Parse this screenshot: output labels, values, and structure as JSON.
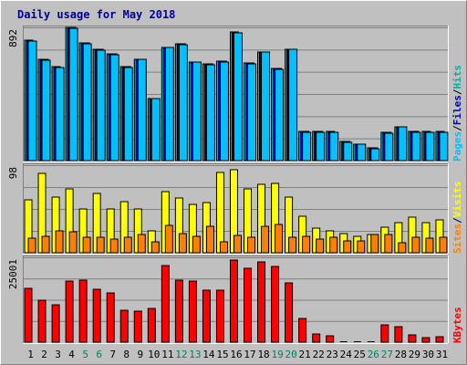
{
  "chart_data": {
    "type": "bar",
    "title": "Daily usage for May 2018",
    "categories": [
      "1",
      "2",
      "3",
      "4",
      "5",
      "6",
      "7",
      "8",
      "9",
      "10",
      "11",
      "12",
      "13",
      "14",
      "15",
      "16",
      "17",
      "18",
      "19",
      "20",
      "21",
      "22",
      "23",
      "24",
      "25",
      "26",
      "27",
      "28",
      "29",
      "30",
      "31"
    ],
    "weekend_days": [
      "5",
      "6",
      "12",
      "13",
      "19",
      "20",
      "26",
      "27"
    ],
    "panels": [
      {
        "id": "pages-files-hits",
        "ymax_label": "892",
        "ymax": 892,
        "legend": [
          "Pages",
          "/",
          "Files",
          "/",
          "Hits"
        ],
        "series": [
          {
            "name": "Hits",
            "color": "#00bfbf",
            "values": [
              805,
              678,
              627,
              892,
              789,
              746,
              713,
              631,
              680,
              418,
              759,
              782,
              661,
              648,
              666,
              860,
              654,
              730,
              617,
              747,
              195,
              194,
              193,
              129,
              112,
              86,
              190,
              228,
              195,
              193,
              193
            ]
          },
          {
            "name": "Files",
            "color": "#0000c0",
            "values": [
              802,
              677,
              624,
              890,
              788,
              745,
              712,
              628,
              679,
              417,
              757,
              781,
              659,
              646,
              665,
              858,
              653,
              728,
              615,
              746,
              193,
              193,
              192,
              128,
              111,
              85,
              189,
              227,
              194,
              192,
              192
            ]
          },
          {
            "name": "Pages",
            "color": "#00c0ff",
            "values": [
              800,
              675,
              621,
              887,
              785,
              742,
              710,
              626,
              676,
              415,
              755,
              778,
              657,
              643,
              662,
              855,
              650,
              725,
              612,
              743,
              190,
              190,
              190,
              125,
              108,
              82,
              186,
              224,
              192,
              190,
              190
            ]
          }
        ]
      },
      {
        "id": "visits-sites",
        "ymax_label": "98",
        "ymax": 98,
        "legend": [
          "Sites",
          "/",
          "Visits"
        ],
        "series": [
          {
            "name": "Visits",
            "color": "#ffff00",
            "values": [
              59,
              89,
              62,
              71,
              49,
              66,
              49,
              57,
              49,
              24,
              68,
              61,
              54,
              56,
              90,
              93,
              71,
              77,
              78,
              62,
              41,
              28,
              24,
              21,
              18,
              20,
              29,
              34,
              40,
              34,
              37
            ]
          },
          {
            "name": "Sites",
            "color": "#ff8000",
            "values": [
              16,
              18,
              24,
              23,
              17,
              17,
              15,
              17,
              20,
              12,
              31,
              21,
              18,
              30,
              12,
              19,
              17,
              30,
              32,
              17,
              18,
              15,
              17,
              13,
              13,
              20,
              20,
              11,
              17,
              16,
              17
            ]
          }
        ]
      },
      {
        "id": "kbytes",
        "ymax_label": "25001",
        "ymax": 25001,
        "legend": [
          "KBytes"
        ],
        "series": [
          {
            "name": "KBytes",
            "color": "#ff0000",
            "values": [
              15800,
              12500,
              11100,
              18000,
              18300,
              15500,
              14500,
              9500,
              9200,
              10000,
              22600,
              18400,
              18000,
              15300,
              15300,
              24100,
              21900,
              23600,
              22200,
              17600,
              7100,
              2300,
              1900,
              0,
              0,
              0,
              5000,
              4600,
              2200,
              1400,
              1700
            ]
          }
        ]
      }
    ],
    "colors": {
      "title": "#0000a0",
      "grid": "#808080",
      "weekday_label": "#000000",
      "weekend_label": "#008060",
      "legend_pages": "#00c0ff",
      "legend_files": "#0000c0",
      "legend_hits": "#00b0a0",
      "legend_sites": "#ff8000",
      "legend_visits": "#ffff00",
      "legend_kbytes": "#ff0000",
      "legend_separator": "#000000"
    },
    "grid": true
  }
}
